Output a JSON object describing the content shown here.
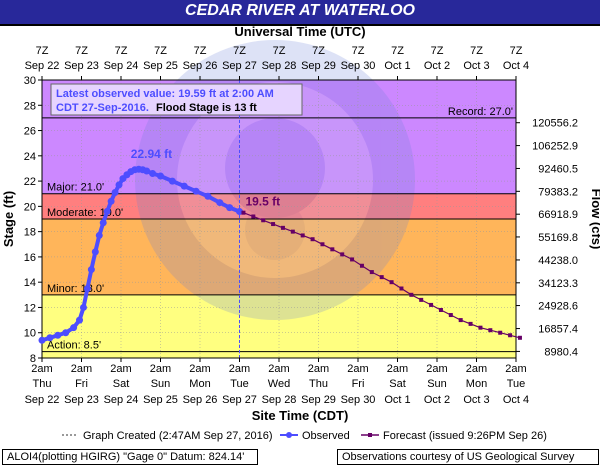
{
  "header": {
    "title": "CEDAR RIVER AT WATERLOO"
  },
  "chart_data": {
    "type": "line",
    "title": "CEDAR RIVER AT WATERLOO",
    "top_axis_label": "Universal Time (UTC)",
    "xlabel": "Site Time (CDT)",
    "ylabel": "Stage (ft)",
    "y2label": "Flow (cfs)",
    "ylim": [
      8,
      30
    ],
    "y_ticks": [
      8,
      10,
      12,
      14,
      16,
      18,
      20,
      22,
      24,
      26,
      28,
      30
    ],
    "y2_ticks": [
      {
        "stage": 8.52,
        "label": "8980.4"
      },
      {
        "stage": 10.33,
        "label": "16857.4"
      },
      {
        "stage": 12.15,
        "label": "24928.6"
      },
      {
        "stage": 13.95,
        "label": "34123.3"
      },
      {
        "stage": 15.76,
        "label": "44238.0"
      },
      {
        "stage": 17.58,
        "label": "55169.8"
      },
      {
        "stage": 19.38,
        "label": "66918.9"
      },
      {
        "stage": 21.19,
        "label": "79383.2"
      },
      {
        "stage": 23.0,
        "label": "92460.5"
      },
      {
        "stage": 24.81,
        "label": "106252.9"
      },
      {
        "stage": 26.62,
        "label": "120556.2"
      }
    ],
    "x_days": [
      "Sep 22",
      "Sep 23",
      "Sep 24",
      "Sep 25",
      "Sep 26",
      "Sep 27",
      "Sep 28",
      "Sep 29",
      "Sep 30",
      "Oct 1",
      "Oct 2",
      "Oct 3",
      "Oct 4"
    ],
    "bottom_ticks": [
      {
        "time": "2am",
        "day": "Thu",
        "date": "Sep 22"
      },
      {
        "time": "2am",
        "day": "Fri",
        "date": "Sep 23"
      },
      {
        "time": "2am",
        "day": "Sat",
        "date": "Sep 24"
      },
      {
        "time": "2am",
        "day": "Sun",
        "date": "Sep 25"
      },
      {
        "time": "2am",
        "day": "Mon",
        "date": "Sep 26"
      },
      {
        "time": "2am",
        "day": "Tue",
        "date": "Sep 27"
      },
      {
        "time": "2am",
        "day": "Wed",
        "date": "Sep 28"
      },
      {
        "time": "2am",
        "day": "Thu",
        "date": "Sep 29"
      },
      {
        "time": "2am",
        "day": "Fri",
        "date": "Sep 30"
      },
      {
        "time": "2am",
        "day": "Sat",
        "date": "Oct 1"
      },
      {
        "time": "2am",
        "day": "Sun",
        "date": "Oct 2"
      },
      {
        "time": "2am",
        "day": "Mon",
        "date": "Oct 3"
      },
      {
        "time": "2am",
        "day": "Tue",
        "date": "Oct 4"
      }
    ],
    "top_ticks": [
      {
        "time": "7Z",
        "date": "Sep 22"
      },
      {
        "time": "7Z",
        "date": "Sep 23"
      },
      {
        "time": "7Z",
        "date": "Sep 24"
      },
      {
        "time": "7Z",
        "date": "Sep 25"
      },
      {
        "time": "7Z",
        "date": "Sep 26"
      },
      {
        "time": "7Z",
        "date": "Sep 27"
      },
      {
        "time": "7Z",
        "date": "Sep 28"
      },
      {
        "time": "7Z",
        "date": "Sep 29"
      },
      {
        "time": "7Z",
        "date": "Sep 30"
      },
      {
        "time": "7Z",
        "date": "Oct 1"
      },
      {
        "time": "7Z",
        "date": "Oct 2"
      },
      {
        "time": "7Z",
        "date": "Oct 3"
      },
      {
        "time": "7Z",
        "date": "Oct 4"
      }
    ],
    "flood_categories": [
      {
        "name": "Record",
        "label": "Record: 27.0'",
        "stage": 27.0
      },
      {
        "name": "Major",
        "label": "Major: 21.0'",
        "stage": 21.0,
        "color": "#ff7f7f"
      },
      {
        "name": "Moderate",
        "label": "Moderate: 19.0'",
        "stage": 19.0,
        "color": "#ffb55a"
      },
      {
        "name": "Minor",
        "label": "Minor: 13.0'",
        "stage": 13.0,
        "color": "#ffff80"
      },
      {
        "name": "Action",
        "label": "Action: 8.5'",
        "stage": 8.5
      }
    ],
    "band_colors": {
      "above_major": "#cc88ff",
      "major": "#ff7f7f",
      "moderate": "#ffb55a",
      "minor": "#ffff80",
      "action": "#ffff80"
    },
    "graph_created_day": 5.0,
    "observed_color": "#4d4dff",
    "forecast_color": "#660066",
    "observed": {
      "name": "Observed",
      "x": [
        0.0,
        0.2,
        0.4,
        0.6,
        0.8,
        0.95,
        1.05,
        1.15,
        1.25,
        1.35,
        1.45,
        1.55,
        1.65,
        1.75,
        1.85,
        1.95,
        2.05,
        2.15,
        2.25,
        2.35,
        2.45,
        2.55,
        2.65,
        2.8,
        3.0,
        3.3,
        3.6,
        3.9,
        4.2,
        4.5,
        4.75,
        5.0
      ],
      "y": [
        9.4,
        9.6,
        9.8,
        10.0,
        10.4,
        11.0,
        12.0,
        13.5,
        15.0,
        16.4,
        17.7,
        18.7,
        19.6,
        20.4,
        21.1,
        21.7,
        22.2,
        22.5,
        22.75,
        22.9,
        22.94,
        22.9,
        22.8,
        22.6,
        22.4,
        22.0,
        21.6,
        21.2,
        20.8,
        20.3,
        19.9,
        19.59
      ]
    },
    "forecast": {
      "name": "Forecast (issued 9:26PM Sep 26)",
      "x": [
        5.1,
        5.35,
        5.6,
        5.85,
        6.1,
        6.35,
        6.6,
        6.85,
        7.1,
        7.35,
        7.6,
        7.85,
        8.1,
        8.35,
        8.6,
        8.85,
        9.1,
        9.35,
        9.6,
        9.85,
        10.1,
        10.35,
        10.6,
        10.85,
        11.1,
        11.35,
        11.6,
        11.85,
        12.1
      ],
      "y": [
        19.5,
        19.2,
        18.9,
        18.6,
        18.3,
        18.0,
        17.7,
        17.4,
        17.0,
        16.6,
        16.2,
        15.8,
        15.3,
        14.8,
        14.4,
        14.0,
        13.5,
        13.0,
        12.6,
        12.2,
        11.8,
        11.4,
        11.0,
        10.7,
        10.4,
        10.2,
        10.0,
        9.8,
        9.6
      ]
    },
    "annotations": {
      "latest_line1": "Latest observed value: 19.59 ft at 2:00 AM",
      "latest_line2a": "CDT 27-Sep-2016.",
      "latest_line2b": "Flood Stage is 13 ft",
      "peak_label": "22.94 ft",
      "peak": {
        "x": 2.45,
        "y": 22.94
      },
      "forecast_label": "19.5 ft",
      "forecast_start": {
        "x": 5.1,
        "y": 19.5
      }
    },
    "legend": {
      "created": "Graph Created (2:47AM Sep 27, 2016)",
      "observed": "Observed",
      "forecast": "Forecast (issued 9:26PM Sep 26)"
    },
    "legend_position": "bottom"
  },
  "footer": {
    "left": "ALOI4(plotting HGIRG) \"Gage 0\" Datum: 824.14'",
    "right": "Observations courtesy of US Geological Survey"
  }
}
